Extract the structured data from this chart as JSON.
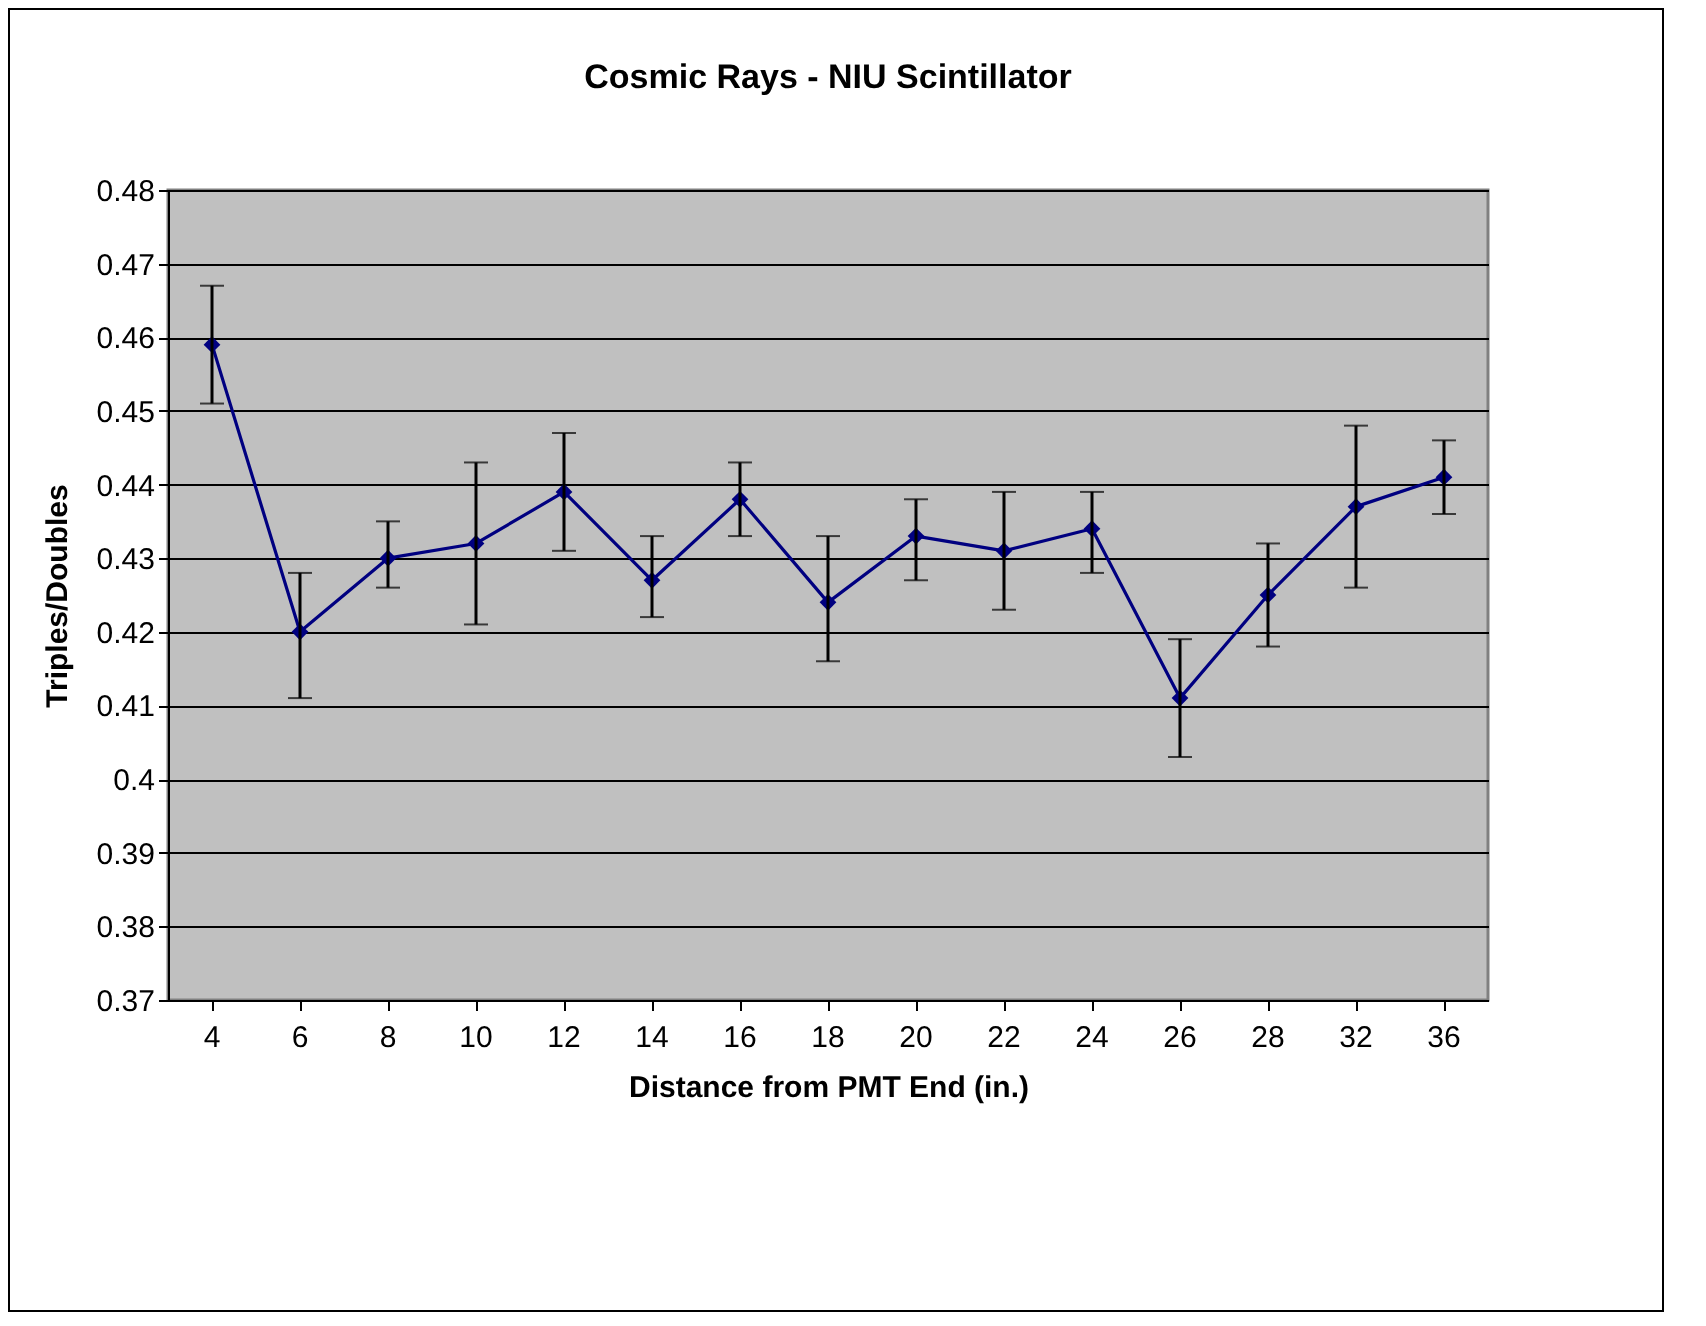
{
  "chart_data": {
    "type": "line",
    "title": "Cosmic Rays - NIU Scintillator",
    "xlabel": "Distance from PMT End (in.)",
    "ylabel": "Triples/Doubles",
    "categories": [
      "4",
      "6",
      "8",
      "10",
      "12",
      "14",
      "16",
      "18",
      "20",
      "22",
      "24",
      "26",
      "28",
      "32",
      "36"
    ],
    "series": [
      {
        "color": "#000080",
        "values": [
          0.459,
          0.42,
          0.43,
          0.432,
          0.439,
          0.427,
          0.438,
          0.424,
          0.433,
          0.431,
          0.434,
          0.411,
          0.425,
          0.437,
          0.441
        ],
        "errors": [
          [
            0.451,
            0.467
          ],
          [
            0.411,
            0.428
          ],
          [
            0.426,
            0.435
          ],
          [
            0.421,
            0.443
          ],
          [
            0.431,
            0.447
          ],
          [
            0.422,
            0.433
          ],
          [
            0.433,
            0.443
          ],
          [
            0.416,
            0.433
          ],
          [
            0.427,
            0.438
          ],
          [
            0.423,
            0.439
          ],
          [
            0.428,
            0.439
          ],
          [
            0.403,
            0.419
          ],
          [
            0.418,
            0.432
          ],
          [
            0.426,
            0.448
          ],
          [
            0.436,
            0.446
          ]
        ]
      }
    ],
    "ylim": [
      0.37,
      0.48
    ],
    "yticks": [
      0.37,
      0.38,
      0.39,
      0.4,
      0.41,
      0.42,
      0.43,
      0.44,
      0.45,
      0.46,
      0.47,
      0.48
    ],
    "grid": "y",
    "marker": "diamond"
  }
}
